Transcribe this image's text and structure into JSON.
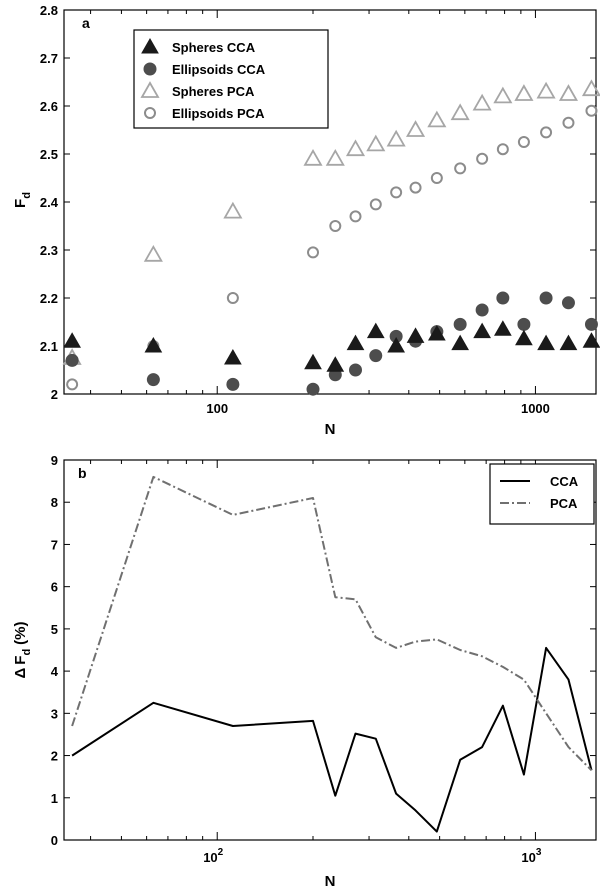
{
  "chart_data": [
    {
      "panel": "a",
      "type": "scatter",
      "xscale": "log",
      "xlim": [
        33,
        1550
      ],
      "ylim": [
        2,
        2.8
      ],
      "xticks": [
        100,
        1000
      ],
      "xtick_labels": [
        "100",
        "1000"
      ],
      "yticks": [
        2,
        2.1,
        2.2,
        2.3,
        2.4,
        2.5,
        2.6,
        2.7,
        2.8
      ],
      "ytick_labels": [
        "2",
        "2.1",
        "2.2",
        "2.3",
        "2.4",
        "2.5",
        "2.6",
        "2.7",
        "2.8"
      ],
      "xlabel": "N",
      "ylabel_main": "F",
      "ylabel_sub": "d",
      "legend_position": "top-left",
      "series": [
        {
          "name": "Spheres CCA",
          "marker": "triangle",
          "filled": true,
          "color": "#1a1a1a",
          "x": [
            35,
            63,
            112,
            200,
            235,
            272,
            315,
            365,
            420,
            490,
            580,
            680,
            790,
            920,
            1080,
            1270,
            1500
          ],
          "y": [
            2.11,
            2.1,
            2.075,
            2.065,
            2.06,
            2.105,
            2.13,
            2.1,
            2.12,
            2.125,
            2.105,
            2.13,
            2.135,
            2.115,
            2.105,
            2.105,
            2.11
          ]
        },
        {
          "name": "Ellipsoids CCA",
          "marker": "circle",
          "filled": true,
          "color": "#4d4d4d",
          "x": [
            35,
            63,
            112,
            200,
            235,
            272,
            315,
            365,
            420,
            490,
            580,
            680,
            790,
            920,
            1080,
            1270,
            1500
          ],
          "y": [
            2.07,
            2.03,
            2.02,
            2.01,
            2.04,
            2.05,
            2.08,
            2.12,
            2.11,
            2.13,
            2.145,
            2.175,
            2.2,
            2.145,
            2.2,
            2.19,
            2.145
          ]
        },
        {
          "name": "Spheres PCA",
          "marker": "triangle",
          "filled": false,
          "color": "#a6a6a6",
          "x": [
            35,
            63,
            112,
            200,
            235,
            272,
            315,
            365,
            420,
            490,
            580,
            680,
            790,
            920,
            1080,
            1270,
            1500
          ],
          "y": [
            2.075,
            2.29,
            2.38,
            2.49,
            2.49,
            2.51,
            2.52,
            2.53,
            2.55,
            2.57,
            2.585,
            2.605,
            2.62,
            2.625,
            2.63,
            2.625,
            2.635
          ]
        },
        {
          "name": "Ellipsoids PCA",
          "marker": "circle",
          "filled": false,
          "color": "#8c8c8c",
          "x": [
            35,
            63,
            112,
            200,
            235,
            272,
            315,
            365,
            420,
            490,
            580,
            680,
            790,
            920,
            1080,
            1270,
            1500
          ],
          "y": [
            2.02,
            2.1,
            2.2,
            2.295,
            2.35,
            2.37,
            2.395,
            2.42,
            2.43,
            2.45,
            2.47,
            2.49,
            2.51,
            2.525,
            2.545,
            2.565,
            2.59
          ]
        }
      ]
    },
    {
      "panel": "b",
      "type": "line",
      "xscale": "log",
      "xlim": [
        33,
        1550
      ],
      "ylim": [
        0,
        9
      ],
      "xticks": [
        100,
        1000
      ],
      "xtick_base": [
        "10",
        "10"
      ],
      "xtick_exp": [
        "2",
        "3"
      ],
      "yticks": [
        0,
        1,
        2,
        3,
        4,
        5,
        6,
        7,
        8,
        9
      ],
      "ytick_labels": [
        "0",
        "1",
        "2",
        "3",
        "4",
        "5",
        "6",
        "7",
        "8",
        "9"
      ],
      "xlabel": "N",
      "ylabel_delta": "Δ",
      "ylabel_main": "F",
      "ylabel_sub": "d",
      "ylabel_unit": "(%)",
      "legend_position": "top-right",
      "series": [
        {
          "name": "CCA",
          "style": "solid",
          "color": "#000000",
          "x": [
            35,
            63,
            112,
            200,
            235,
            272,
            315,
            365,
            420,
            490,
            580,
            680,
            790,
            920,
            1080,
            1270,
            1500
          ],
          "y": [
            2.0,
            3.25,
            2.7,
            2.82,
            1.05,
            2.52,
            2.4,
            1.1,
            0.7,
            0.2,
            1.9,
            2.2,
            3.18,
            1.55,
            4.55,
            3.8,
            1.65
          ]
        },
        {
          "name": "PCA",
          "style": "dashdot",
          "color": "#707070",
          "x": [
            35,
            63,
            112,
            200,
            235,
            272,
            315,
            365,
            420,
            490,
            580,
            680,
            790,
            920,
            1080,
            1270,
            1500
          ],
          "y": [
            2.7,
            8.6,
            7.7,
            8.1,
            5.75,
            5.7,
            4.8,
            4.55,
            4.7,
            4.75,
            4.5,
            4.35,
            4.1,
            3.8,
            3.0,
            2.2,
            1.65
          ]
        }
      ]
    }
  ],
  "panel_a_letter": "a",
  "panel_b_letter": "b"
}
